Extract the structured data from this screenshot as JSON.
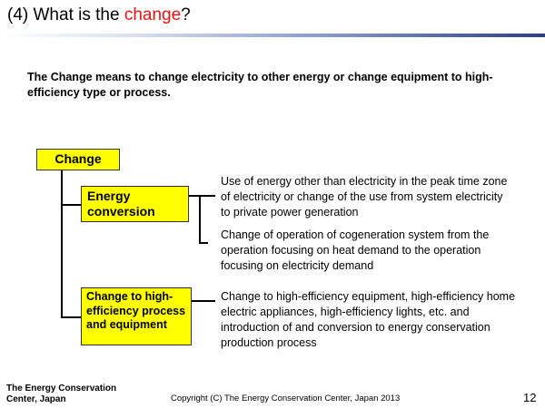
{
  "title": {
    "prefix": "(4) What is the ",
    "highlight": "change",
    "suffix": "?"
  },
  "intro": "The Change means to change electricity to other energy or change equipment to high-efficiency type or process.",
  "diagram": {
    "root_label": "Change",
    "energy_label": "Energy conversion",
    "equipment_label": "Change to high-efficiency process and equipment",
    "energy_desc_1": "Use of energy other than electricity in the peak time zone of electricity or change of the use from system electricity to private power generation",
    "energy_desc_2": "Change of operation of cogeneration system from the operation focusing on heat demand to the operation focusing on electricity demand",
    "equipment_desc": "Change to high-efficiency equipment, high-efficiency home electric appliances, high-efficiency lights, etc. and introduction of and conversion to energy conservation production process"
  },
  "footer": {
    "org": "The Energy Conservation Center, Japan",
    "copyright": "Copyright (C) The Energy Conservation Center, Japan 2013",
    "page": "12"
  },
  "colors": {
    "highlight": "#ee1111",
    "box_fill": "#ffff00",
    "rule_end": "#2b3f86"
  }
}
